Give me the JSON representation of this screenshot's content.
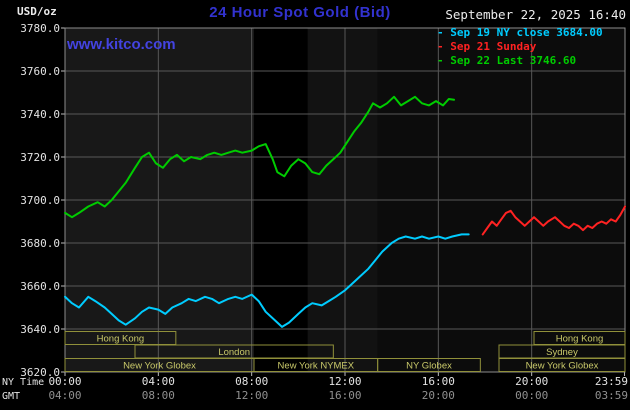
{
  "header": {
    "units_label": "USD/oz",
    "title": "24 Hour Spot Gold (Bid)",
    "datetime": "September 22, 2025 16:40",
    "watermark": "www.kitco.com"
  },
  "legend": {
    "items": [
      {
        "label": "- Sep 19 NY close 3684.00"
      },
      {
        "label": "- Sep 21 Sunday"
      },
      {
        "label": "- Sep 22 Last 3746.60"
      }
    ]
  },
  "axes": {
    "ny_label": "NY Time",
    "gmt_label": "GMT",
    "y_ticks": [
      {
        "v": 3780,
        "label": "3780.0"
      },
      {
        "v": 3760,
        "label": "3760.0"
      },
      {
        "v": 3740,
        "label": "3740.0"
      },
      {
        "v": 3720,
        "label": "3720.0"
      },
      {
        "v": 3700,
        "label": "3700.0"
      },
      {
        "v": 3680,
        "label": "3680.0"
      },
      {
        "v": 3660,
        "label": "3660.0"
      },
      {
        "v": 3640,
        "label": "3640.0"
      },
      {
        "v": 3620,
        "label": "3620.0"
      }
    ],
    "x_ticks": [
      {
        "h": 0,
        "ny": "00:00",
        "gmt": "04:00"
      },
      {
        "h": 4,
        "ny": "04:00",
        "gmt": "08:00"
      },
      {
        "h": 8,
        "ny": "08:00",
        "gmt": "12:00"
      },
      {
        "h": 12,
        "ny": "12:00",
        "gmt": "16:00"
      },
      {
        "h": 16,
        "ny": "16:00",
        "gmt": "20:00"
      },
      {
        "h": 20,
        "ny": "20:00",
        "gmt": "00:00"
      },
      {
        "h": 23.98,
        "ny": "23:59",
        "gmt": "03:59"
      }
    ]
  },
  "sessions": [
    {
      "row": 0,
      "start": 0,
      "end": 4.75,
      "label": "Hong Kong"
    },
    {
      "row": 0,
      "start": 20.1,
      "end": 24,
      "label": "Hong Kong"
    },
    {
      "row": 1,
      "start": 3,
      "end": 11.5,
      "label": "London"
    },
    {
      "row": 1,
      "start": 18.6,
      "end": 24,
      "label": "Sydney"
    },
    {
      "row": 2,
      "start": 0,
      "end": 8.1,
      "label": "New York Globex"
    },
    {
      "row": 2,
      "start": 8.1,
      "end": 13.4,
      "label": "New York NYMEX"
    },
    {
      "row": 2,
      "start": 13.4,
      "end": 17.8,
      "label": "NY Globex"
    },
    {
      "row": 2,
      "start": 18.6,
      "end": 24,
      "label": "New York Globex"
    }
  ],
  "chart_data": {
    "type": "line",
    "title": "24 Hour Spot Gold (Bid)",
    "ylabel": "USD/oz",
    "xlabel": "NY Time (hours, 00:00-23:59)",
    "xlim": [
      0,
      24
    ],
    "ylim": [
      3620,
      3780
    ],
    "plot_bg": "#000000",
    "grid": true,
    "legend_position": "top-right",
    "shaded_bands": [
      {
        "start": 0,
        "end": 8.1,
        "color": "#181818"
      },
      {
        "start": 10.4,
        "end": 13.4,
        "color": "#121212"
      },
      {
        "start": 13.4,
        "end": 24,
        "color": "#0c0c0c"
      }
    ],
    "series": [
      {
        "id": "sep19",
        "name": "Sep 19 NY close 3684.00",
        "color": "#00ccff",
        "points": [
          [
            0,
            3655
          ],
          [
            0.3,
            3652
          ],
          [
            0.6,
            3650
          ],
          [
            1,
            3655
          ],
          [
            1.3,
            3653
          ],
          [
            1.7,
            3650
          ],
          [
            2,
            3647
          ],
          [
            2.3,
            3644
          ],
          [
            2.6,
            3642
          ],
          [
            3,
            3645
          ],
          [
            3.3,
            3648
          ],
          [
            3.6,
            3650
          ],
          [
            4,
            3649
          ],
          [
            4.3,
            3647
          ],
          [
            4.6,
            3650
          ],
          [
            5,
            3652
          ],
          [
            5.3,
            3654
          ],
          [
            5.6,
            3653
          ],
          [
            6,
            3655
          ],
          [
            6.3,
            3654
          ],
          [
            6.6,
            3652
          ],
          [
            7,
            3654
          ],
          [
            7.3,
            3655
          ],
          [
            7.6,
            3654
          ],
          [
            8,
            3656
          ],
          [
            8.3,
            3653
          ],
          [
            8.6,
            3648
          ],
          [
            9,
            3644
          ],
          [
            9.3,
            3641
          ],
          [
            9.6,
            3643
          ],
          [
            10,
            3647
          ],
          [
            10.3,
            3650
          ],
          [
            10.6,
            3652
          ],
          [
            11,
            3651
          ],
          [
            11.3,
            3653
          ],
          [
            11.6,
            3655
          ],
          [
            12,
            3658
          ],
          [
            12.3,
            3661
          ],
          [
            12.6,
            3664
          ],
          [
            13,
            3668
          ],
          [
            13.3,
            3672
          ],
          [
            13.6,
            3676
          ],
          [
            14,
            3680
          ],
          [
            14.3,
            3682
          ],
          [
            14.6,
            3683
          ],
          [
            15,
            3682
          ],
          [
            15.3,
            3683
          ],
          [
            15.6,
            3682
          ],
          [
            16,
            3683
          ],
          [
            16.3,
            3682
          ],
          [
            16.6,
            3683
          ],
          [
            17,
            3684
          ],
          [
            17.3,
            3684
          ]
        ]
      },
      {
        "id": "sep21",
        "name": "Sep 21 Sunday",
        "color": "#ff2222",
        "points": [
          [
            17.9,
            3684
          ],
          [
            18.1,
            3687
          ],
          [
            18.3,
            3690
          ],
          [
            18.5,
            3688
          ],
          [
            18.7,
            3691
          ],
          [
            18.9,
            3694
          ],
          [
            19.1,
            3695
          ],
          [
            19.3,
            3692
          ],
          [
            19.5,
            3690
          ],
          [
            19.7,
            3688
          ],
          [
            19.9,
            3690
          ],
          [
            20.1,
            3692
          ],
          [
            20.3,
            3690
          ],
          [
            20.5,
            3688
          ],
          [
            20.7,
            3690
          ],
          [
            21,
            3692
          ],
          [
            21.2,
            3690
          ],
          [
            21.4,
            3688
          ],
          [
            21.6,
            3687
          ],
          [
            21.8,
            3689
          ],
          [
            22,
            3688
          ],
          [
            22.2,
            3686
          ],
          [
            22.4,
            3688
          ],
          [
            22.6,
            3687
          ],
          [
            22.8,
            3689
          ],
          [
            23,
            3690
          ],
          [
            23.2,
            3689
          ],
          [
            23.4,
            3691
          ],
          [
            23.6,
            3690
          ],
          [
            23.8,
            3693
          ],
          [
            24,
            3697
          ]
        ]
      },
      {
        "id": "sep22",
        "name": "Sep 22 Last 3746.60",
        "color": "#00cc00",
        "points": [
          [
            0,
            3694
          ],
          [
            0.3,
            3692
          ],
          [
            0.6,
            3694
          ],
          [
            1,
            3697
          ],
          [
            1.4,
            3699
          ],
          [
            1.7,
            3697
          ],
          [
            2,
            3700
          ],
          [
            2.3,
            3704
          ],
          [
            2.6,
            3708
          ],
          [
            3,
            3715
          ],
          [
            3.3,
            3720
          ],
          [
            3.6,
            3722
          ],
          [
            3.9,
            3717
          ],
          [
            4.2,
            3715
          ],
          [
            4.5,
            3719
          ],
          [
            4.8,
            3721
          ],
          [
            5.1,
            3718
          ],
          [
            5.4,
            3720
          ],
          [
            5.8,
            3719
          ],
          [
            6.1,
            3721
          ],
          [
            6.4,
            3722
          ],
          [
            6.7,
            3721
          ],
          [
            7,
            3722
          ],
          [
            7.3,
            3723
          ],
          [
            7.6,
            3722
          ],
          [
            8,
            3723
          ],
          [
            8.3,
            3725
          ],
          [
            8.6,
            3726
          ],
          [
            8.9,
            3719
          ],
          [
            9.1,
            3713
          ],
          [
            9.4,
            3711
          ],
          [
            9.7,
            3716
          ],
          [
            10,
            3719
          ],
          [
            10.3,
            3717
          ],
          [
            10.6,
            3713
          ],
          [
            10.9,
            3712
          ],
          [
            11.2,
            3716
          ],
          [
            11.5,
            3719
          ],
          [
            11.8,
            3722
          ],
          [
            12.1,
            3727
          ],
          [
            12.4,
            3732
          ],
          [
            12.7,
            3736
          ],
          [
            13,
            3741
          ],
          [
            13.2,
            3745
          ],
          [
            13.5,
            3743
          ],
          [
            13.8,
            3745
          ],
          [
            14.1,
            3748
          ],
          [
            14.4,
            3744
          ],
          [
            14.7,
            3746
          ],
          [
            15,
            3748
          ],
          [
            15.3,
            3745
          ],
          [
            15.6,
            3744
          ],
          [
            15.9,
            3746
          ],
          [
            16.2,
            3744
          ],
          [
            16.45,
            3747
          ],
          [
            16.67,
            3746.6
          ]
        ]
      }
    ]
  }
}
